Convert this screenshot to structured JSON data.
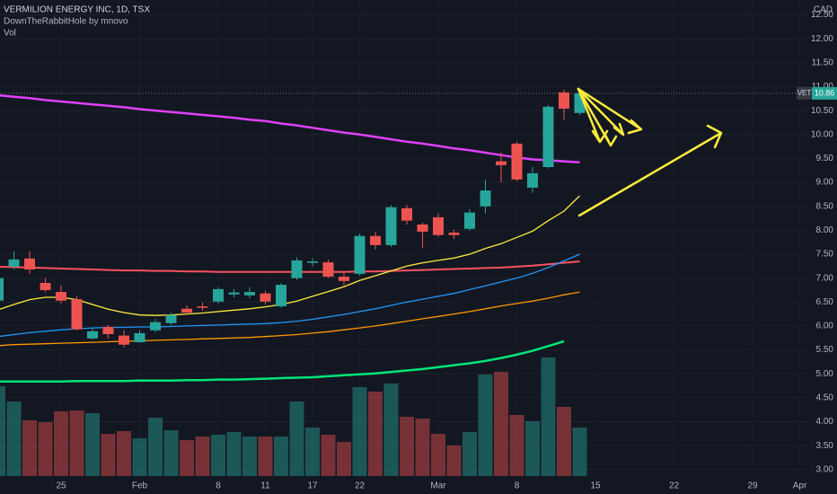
{
  "header": {
    "title": "VERMILION ENERGY INC, 1D, TSX",
    "indicator": "DownTheRabbitHole by mnovo",
    "volume_label": "Vol"
  },
  "chart_data": {
    "type": "candlestick",
    "currency": "CAD",
    "symbol": "VET",
    "up_color": "#26a69a",
    "down_color": "#ef5350",
    "grid": true,
    "categories": [
      null,
      null,
      null,
      null,
      "25",
      null,
      null,
      null,
      null,
      "Feb",
      null,
      null,
      null,
      null,
      "8",
      null,
      null,
      "11",
      null,
      null,
      "17",
      null,
      null,
      "22",
      null,
      null,
      null,
      null,
      "Mar",
      null,
      null,
      null,
      null,
      "8",
      null,
      null,
      null,
      null,
      "15",
      null,
      null,
      null,
      null,
      "22",
      null,
      null,
      null,
      null,
      "29",
      null,
      null,
      "Apr"
    ],
    "open": [
      6.53,
      7.24,
      7.41,
      6.9,
      6.71,
      6.56,
      5.74,
      5.98,
      5.8,
      5.66,
      5.91,
      6.06,
      6.36,
      6.41,
      6.51,
      6.66,
      6.64,
      6.68,
      6.41,
      7.0,
      7.32,
      7.33,
      7.03,
      7.09,
      7.88,
      7.69,
      8.46,
      8.12,
      8.27,
      7.95,
      8.03,
      8.5,
      9.44,
      9.81,
      8.89,
      9.32,
      10.88,
      10.45,
      null,
      null,
      null,
      null,
      null,
      null,
      null,
      null,
      null,
      null,
      null,
      null,
      null,
      null
    ],
    "high": [
      7.05,
      7.56,
      7.56,
      7.0,
      6.85,
      6.62,
      5.96,
      6.02,
      5.91,
      5.91,
      6.15,
      6.28,
      6.43,
      6.49,
      6.81,
      6.77,
      6.81,
      6.73,
      6.9,
      7.43,
      7.41,
      7.39,
      7.11,
      7.93,
      7.97,
      8.52,
      8.53,
      8.16,
      8.35,
      8.01,
      8.44,
      9.06,
      9.62,
      9.85,
      9.32,
      10.62,
      10.94,
      10.94,
      null,
      null,
      null,
      null,
      null,
      null,
      null,
      null,
      null,
      null,
      null,
      null,
      null,
      null
    ],
    "low": [
      6.45,
      7.18,
      7.09,
      6.71,
      6.47,
      5.91,
      5.72,
      5.74,
      5.55,
      5.65,
      5.87,
      6.02,
      6.25,
      6.32,
      6.47,
      6.6,
      6.58,
      6.45,
      6.38,
      6.96,
      7.24,
      7.0,
      6.85,
      7.05,
      7.6,
      7.65,
      8.12,
      7.63,
      7.86,
      7.82,
      7.99,
      8.35,
      9.0,
      9.02,
      8.78,
      9.29,
      10.3,
      10.41,
      null,
      null,
      null,
      null,
      null,
      null,
      null,
      null,
      null,
      null,
      null,
      null,
      null,
      null
    ],
    "close": [
      7.0,
      7.39,
      7.18,
      6.75,
      6.53,
      5.93,
      5.89,
      5.83,
      5.61,
      5.85,
      6.08,
      6.23,
      6.28,
      6.38,
      6.77,
      6.7,
      6.71,
      6.51,
      6.86,
      7.37,
      7.35,
      7.03,
      6.94,
      7.88,
      7.69,
      8.48,
      8.2,
      7.97,
      7.9,
      7.9,
      8.37,
      8.83,
      9.36,
      9.06,
      9.19,
      10.58,
      10.54,
      10.86,
      null,
      null,
      null,
      null,
      null,
      null,
      null,
      null,
      null,
      null,
      null,
      null,
      null,
      null
    ],
    "volume": [
      100,
      83,
      62,
      60,
      72,
      73,
      70,
      47,
      50,
      42,
      65,
      51,
      40,
      44,
      46,
      49,
      44,
      44,
      44,
      83,
      54,
      46,
      38,
      99,
      94,
      103,
      66,
      64,
      47,
      34,
      49,
      113,
      116,
      68,
      61,
      132,
      77,
      54,
      null,
      null,
      null,
      null,
      null,
      null,
      null,
      null,
      null,
      null,
      null,
      null,
      null,
      null
    ],
    "series": [
      {
        "color": "#e040fb",
        "values": [
          10.82,
          10.79,
          10.76,
          10.72,
          10.69,
          10.66,
          10.63,
          10.6,
          10.57,
          10.53,
          10.5,
          10.47,
          10.44,
          10.41,
          10.38,
          10.35,
          10.31,
          10.28,
          10.23,
          10.19,
          10.14,
          10.09,
          10.04,
          10.0,
          9.95,
          9.9,
          9.85,
          9.81,
          9.76,
          9.71,
          9.67,
          9.62,
          9.57,
          9.52,
          9.48,
          9.46,
          9.44,
          9.42,
          null,
          null,
          null,
          null,
          null,
          null,
          null,
          null,
          null,
          null,
          null,
          null,
          null,
          null
        ]
      },
      {
        "color": "#f7525f",
        "values": [
          7.24,
          7.23,
          7.22,
          7.21,
          7.2,
          7.19,
          7.18,
          7.17,
          7.16,
          7.16,
          7.15,
          7.15,
          7.14,
          7.14,
          7.13,
          7.13,
          7.13,
          7.13,
          7.13,
          7.13,
          7.13,
          7.13,
          7.13,
          7.14,
          7.14,
          7.15,
          7.16,
          7.17,
          7.18,
          7.19,
          7.2,
          7.21,
          7.22,
          7.24,
          7.26,
          7.29,
          7.32,
          7.35,
          null,
          null,
          null,
          null,
          null,
          null,
          null,
          null,
          null,
          null,
          null,
          null,
          null,
          null
        ]
      },
      {
        "color": "#ffeb3b",
        "values": [
          6.34,
          6.45,
          6.55,
          6.6,
          6.6,
          6.55,
          6.45,
          6.35,
          6.28,
          6.23,
          6.22,
          6.23,
          6.25,
          6.27,
          6.3,
          6.33,
          6.36,
          6.4,
          6.45,
          6.52,
          6.62,
          6.72,
          6.82,
          6.95,
          7.05,
          7.15,
          7.25,
          7.32,
          7.37,
          7.42,
          7.5,
          7.62,
          7.72,
          7.85,
          7.98,
          8.2,
          8.4,
          8.72,
          null,
          null,
          null,
          null,
          null,
          null,
          null,
          null,
          null,
          null,
          null,
          null,
          null,
          null
        ]
      },
      {
        "color": "#2196f3",
        "values": [
          5.78,
          5.82,
          5.86,
          5.89,
          5.92,
          5.94,
          5.96,
          5.97,
          5.97,
          5.98,
          5.98,
          5.99,
          6.0,
          6.01,
          6.02,
          6.03,
          6.04,
          6.05,
          6.07,
          6.1,
          6.14,
          6.19,
          6.24,
          6.3,
          6.36,
          6.43,
          6.5,
          6.56,
          6.62,
          6.68,
          6.76,
          6.84,
          6.92,
          7.0,
          7.1,
          7.22,
          7.36,
          7.5,
          null,
          null,
          null,
          null,
          null,
          null,
          null,
          null,
          null,
          null,
          null,
          null,
          null,
          null
        ]
      },
      {
        "color": "#ff9800",
        "values": [
          5.59,
          5.61,
          5.62,
          5.63,
          5.64,
          5.65,
          5.66,
          5.67,
          5.68,
          5.69,
          5.7,
          5.71,
          5.72,
          5.73,
          5.74,
          5.75,
          5.76,
          5.78,
          5.8,
          5.82,
          5.85,
          5.88,
          5.92,
          5.96,
          6.0,
          6.05,
          6.1,
          6.15,
          6.2,
          6.25,
          6.3,
          6.36,
          6.42,
          6.47,
          6.52,
          6.58,
          6.65,
          6.71,
          null,
          null,
          null,
          null,
          null,
          null,
          null,
          null,
          null,
          null,
          null,
          null,
          null,
          null
        ]
      },
      {
        "color": "#00e676",
        "values": [
          4.84,
          4.84,
          4.84,
          4.84,
          4.84,
          4.85,
          4.85,
          4.85,
          4.85,
          4.86,
          4.86,
          4.86,
          4.87,
          4.87,
          4.88,
          4.88,
          4.89,
          4.9,
          4.91,
          4.92,
          4.93,
          4.95,
          4.97,
          4.99,
          5.01,
          5.04,
          5.07,
          5.1,
          5.14,
          5.18,
          5.22,
          5.27,
          5.33,
          5.4,
          5.48,
          5.58,
          5.68,
          null,
          null,
          null,
          null,
          null,
          null,
          null,
          null,
          null,
          null,
          null,
          null,
          null,
          null,
          null
        ]
      }
    ],
    "ylim": [
      2.49,
      12.81
    ],
    "yticks": [
      {
        "value": 3,
        "label": "3.00"
      },
      {
        "value": 3.5,
        "label": "3.50"
      },
      {
        "value": 4,
        "label": "4.00"
      },
      {
        "value": 4.5,
        "label": "4.50"
      },
      {
        "value": 5,
        "label": "5.00"
      },
      {
        "value": 5.5,
        "label": "5.50"
      },
      {
        "value": 6,
        "label": "6.00"
      },
      {
        "value": 6.5,
        "label": "6.50"
      },
      {
        "value": 7,
        "label": "7.00"
      },
      {
        "value": 7.5,
        "label": "7.50"
      },
      {
        "value": 8,
        "label": "8.00"
      },
      {
        "value": 8.5,
        "label": "8.50"
      },
      {
        "value": 9,
        "label": "9.00"
      },
      {
        "value": 9.5,
        "label": "9.50"
      },
      {
        "value": 10,
        "label": "10.00"
      },
      {
        "value": 10.5,
        "label": "10.50"
      },
      {
        "value": 11,
        "label": "11.00"
      },
      {
        "value": 11.5,
        "label": "11.50"
      },
      {
        "value": 12,
        "label": "12.00"
      },
      {
        "value": 12.5,
        "label": "12.50"
      }
    ]
  }
}
